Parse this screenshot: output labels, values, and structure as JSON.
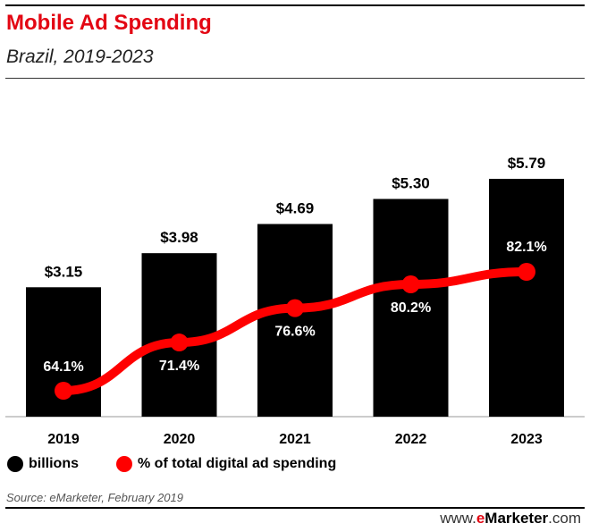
{
  "header": {
    "title": "Mobile Ad Spending",
    "subtitle": "Brazil, 2019-2023"
  },
  "chart_data": {
    "type": "bar",
    "title": "Mobile Ad Spending",
    "subtitle": "Brazil, 2019-2023",
    "categories": [
      "2019",
      "2020",
      "2021",
      "2022",
      "2023"
    ],
    "series": [
      {
        "name": "billions",
        "type": "bar",
        "values": [
          3.15,
          3.98,
          4.69,
          5.3,
          5.79
        ],
        "labels": [
          "$3.15",
          "$3.98",
          "$4.69",
          "$5.30",
          "$5.79"
        ],
        "color": "#000000"
      },
      {
        "name": "% of total digital ad spending",
        "type": "line",
        "values": [
          64.1,
          71.4,
          76.6,
          80.2,
          82.1
        ],
        "labels": [
          "64.1%",
          "71.4%",
          "76.6%",
          "80.2%",
          "82.1%"
        ],
        "color": "#ff0000"
      }
    ],
    "legend_position": "bottom-left",
    "grid": false
  },
  "legend": {
    "bars_label": "billions",
    "line_label": "% of total digital ad spending"
  },
  "footer": {
    "source": "Source: eMarketer, February 2019",
    "brand_prefix": "www.",
    "brand_e": "e",
    "brand_name": "Marketer",
    "brand_suffix": ".com"
  }
}
